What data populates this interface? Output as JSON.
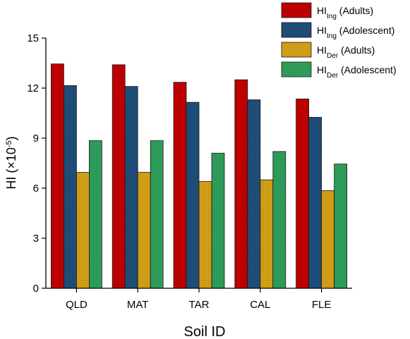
{
  "chart_data": {
    "type": "bar",
    "title": "",
    "xlabel": "Soil ID",
    "ylabel": {
      "base": "HI (×10",
      "sup": "-5",
      "tail": ")"
    },
    "ylim": [
      0,
      15
    ],
    "yticks": [
      "0",
      "3",
      "6",
      "9",
      "12",
      "15"
    ],
    "grid": false,
    "legend_position": "top-right",
    "categories": [
      "QLD",
      "MAT",
      "TAR",
      "CAL",
      "FLE"
    ],
    "series": [
      {
        "name": "HIIng (Adults)",
        "label": {
          "base": "HI",
          "sub": "Ing",
          "rest": " (Adults)"
        },
        "color": "#c00000",
        "values": [
          13.45,
          13.4,
          12.35,
          12.5,
          11.35
        ]
      },
      {
        "name": "HIIng (Adolescent)",
        "label": {
          "base": "HI",
          "sub": "Ing",
          "rest": " (Adolescent)"
        },
        "color": "#1f4e79",
        "values": [
          12.15,
          12.1,
          11.15,
          11.3,
          10.25
        ]
      },
      {
        "name": "HIDer (Adults)",
        "label": {
          "base": "HI",
          "sub": "Der",
          "rest": " (Adults)"
        },
        "color": "#d4a017",
        "values": [
          6.95,
          6.95,
          6.4,
          6.5,
          5.85
        ]
      },
      {
        "name": "HIDer (Adolescent)",
        "label": {
          "base": "HI",
          "sub": "Der",
          "rest": " (Adolescent)"
        },
        "color": "#2e9e5b",
        "values": [
          8.85,
          8.85,
          8.1,
          8.2,
          7.45
        ]
      }
    ]
  }
}
